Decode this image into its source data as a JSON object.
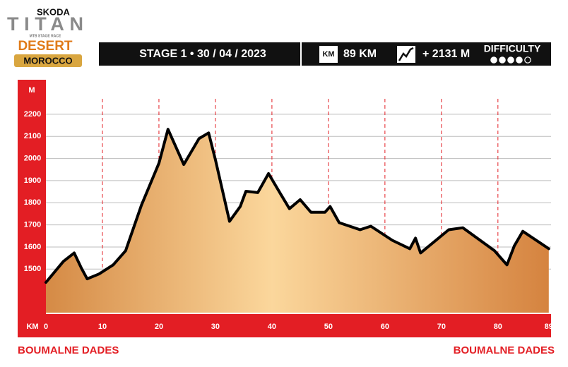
{
  "logo": {
    "brand": "SKODA",
    "name": "TITAN",
    "tagline": "MTB STAGE RACE",
    "region": "DESERT",
    "country": "MOROCCO"
  },
  "header": {
    "stage": "STAGE 1 • 30  / 04 / 2023",
    "km_icon": "KM",
    "distance": "89 KM",
    "elevation_gain": "+ 2131 M",
    "difficulty_label": "DIFFICULTY",
    "difficulty": 4,
    "difficulty_max": 5
  },
  "chart_data": {
    "type": "area",
    "y_label": "M",
    "x_label": "KM",
    "x": [
      0,
      3.1,
      5,
      6.3,
      7.3,
      9.4,
      11.9,
      14.1,
      16.9,
      20,
      21.6,
      24.4,
      27.1,
      28.8,
      30,
      32.5,
      34.4,
      35.4,
      37.5,
      39.4,
      41.6,
      43.1,
      45,
      46.9,
      49.4,
      50.3,
      51.9,
      55.6,
      57.5,
      61.3,
      64.4,
      65.4,
      66.3,
      71.3,
      73.8,
      79.4,
      81.6,
      82.9,
      84.4,
      89
    ],
    "values": [
      1440,
      1535,
      1573,
      1503,
      1456,
      1478,
      1519,
      1583,
      1789,
      1979,
      2132,
      1973,
      2090,
      2116,
      1995,
      1716,
      1783,
      1852,
      1846,
      1932,
      1837,
      1773,
      1814,
      1757,
      1757,
      1783,
      1710,
      1678,
      1694,
      1630,
      1592,
      1640,
      1573,
      1678,
      1687,
      1583,
      1519,
      1605,
      1671,
      1592
    ],
    "color": "#000000",
    "xlim": [
      0,
      89.4
    ],
    "xticks": [
      0,
      10,
      20,
      30,
      40,
      50,
      60,
      70,
      80,
      89
    ],
    "ylim": [
      1303,
      2270
    ],
    "yticks": [
      1500,
      1600,
      1700,
      1800,
      1900,
      2000,
      2100,
      2200
    ],
    "grid": true,
    "start": "BOUMALNE DADES",
    "finish": "BOUMALNE DADES"
  }
}
